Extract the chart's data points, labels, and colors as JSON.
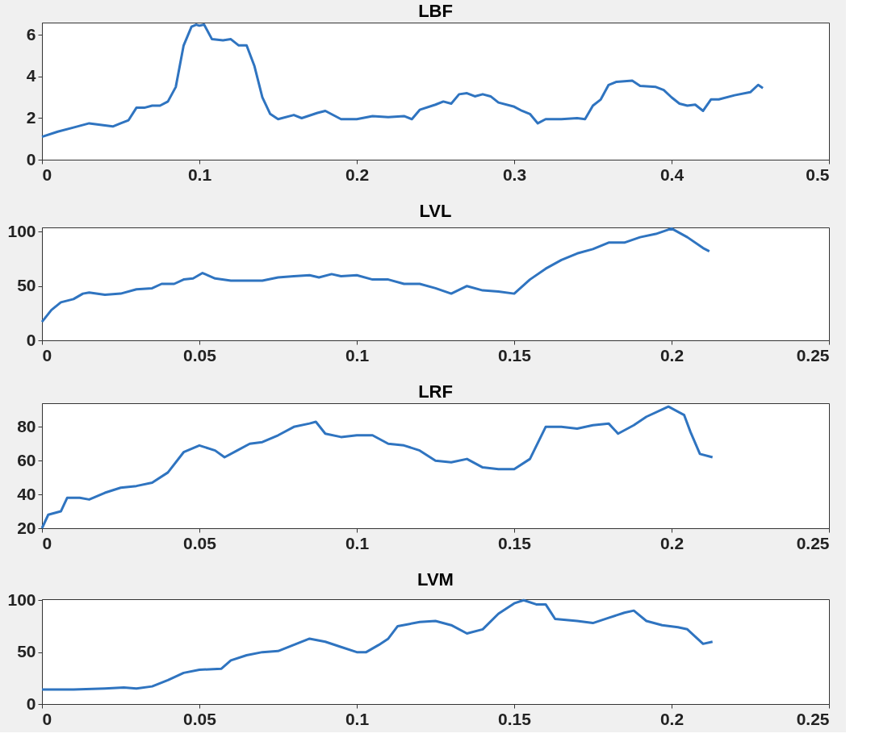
{
  "chart_data": [
    {
      "type": "line",
      "title": "LBF",
      "color": "#2f74c0",
      "xlim": [
        0,
        0.5
      ],
      "xticks": [
        0,
        0.1,
        0.2,
        0.3,
        0.4,
        0.5
      ],
      "ylim": [
        0,
        6.6
      ],
      "yticks": [
        0,
        2,
        4,
        6
      ],
      "grid": false,
      "x": [
        0,
        0.01,
        0.02,
        0.03,
        0.035,
        0.045,
        0.05,
        0.055,
        0.06,
        0.065,
        0.07,
        0.075,
        0.08,
        0.085,
        0.09,
        0.095,
        0.098,
        0.1,
        0.103,
        0.108,
        0.115,
        0.12,
        0.125,
        0.13,
        0.135,
        0.14,
        0.145,
        0.15,
        0.16,
        0.165,
        0.175,
        0.18,
        0.19,
        0.2,
        0.21,
        0.22,
        0.23,
        0.235,
        0.24,
        0.25,
        0.255,
        0.26,
        0.265,
        0.27,
        0.275,
        0.28,
        0.285,
        0.29,
        0.3,
        0.305,
        0.31,
        0.315,
        0.32,
        0.33,
        0.34,
        0.345,
        0.35,
        0.355,
        0.36,
        0.365,
        0.375,
        0.38,
        0.39,
        0.395,
        0.4,
        0.405,
        0.41,
        0.415,
        0.42,
        0.425,
        0.43,
        0.44,
        0.45,
        0.455,
        0.458
      ],
      "values": [
        1.1,
        1.35,
        1.55,
        1.75,
        1.7,
        1.6,
        1.75,
        1.9,
        2.5,
        2.5,
        2.6,
        2.6,
        2.8,
        3.5,
        5.5,
        6.4,
        6.5,
        6.45,
        6.5,
        5.8,
        5.75,
        5.8,
        5.5,
        5.5,
        4.5,
        3.0,
        2.2,
        1.95,
        2.15,
        2.0,
        2.25,
        2.35,
        1.95,
        1.95,
        2.1,
        2.05,
        2.1,
        1.95,
        2.4,
        2.65,
        2.8,
        2.7,
        3.15,
        3.2,
        3.05,
        3.15,
        3.05,
        2.75,
        2.55,
        2.35,
        2.2,
        1.75,
        1.95,
        1.95,
        2.0,
        1.95,
        2.6,
        2.9,
        3.6,
        3.75,
        3.8,
        3.55,
        3.5,
        3.35,
        3.0,
        2.7,
        2.6,
        2.65,
        2.35,
        2.9,
        2.9,
        3.1,
        3.25,
        3.6,
        3.45
      ]
    },
    {
      "type": "line",
      "title": "LVL",
      "color": "#2f74c0",
      "xlim": [
        0,
        0.25
      ],
      "xticks": [
        0,
        0.05,
        0.1,
        0.15,
        0.2,
        0.25
      ],
      "ylim": [
        0,
        104
      ],
      "yticks": [
        0,
        50,
        100
      ],
      "grid": false,
      "x": [
        0,
        0.003,
        0.006,
        0.01,
        0.013,
        0.015,
        0.02,
        0.025,
        0.03,
        0.035,
        0.038,
        0.042,
        0.045,
        0.048,
        0.051,
        0.055,
        0.06,
        0.07,
        0.075,
        0.08,
        0.085,
        0.088,
        0.092,
        0.095,
        0.1,
        0.105,
        0.11,
        0.115,
        0.12,
        0.125,
        0.13,
        0.135,
        0.14,
        0.145,
        0.15,
        0.155,
        0.16,
        0.165,
        0.17,
        0.175,
        0.18,
        0.185,
        0.19,
        0.195,
        0.2,
        0.205,
        0.21,
        0.212
      ],
      "values": [
        17,
        28,
        35,
        38,
        43,
        44,
        42,
        43,
        47,
        48,
        52,
        52,
        56,
        57,
        62,
        57,
        55,
        55,
        58,
        59,
        60,
        58,
        61,
        59,
        60,
        56,
        56,
        52,
        52,
        48,
        43,
        50,
        46,
        45,
        43,
        56,
        66,
        74,
        80,
        84,
        90,
        90,
        95,
        98,
        103,
        95,
        85,
        82
      ]
    },
    {
      "type": "line",
      "title": "LRF",
      "color": "#2f74c0",
      "xlim": [
        0,
        0.25
      ],
      "xticks": [
        0,
        0.05,
        0.1,
        0.15,
        0.2,
        0.25
      ],
      "ylim": [
        20,
        94
      ],
      "yticks": [
        20,
        40,
        60,
        80
      ],
      "grid": false,
      "x": [
        0,
        0.002,
        0.006,
        0.008,
        0.012,
        0.015,
        0.02,
        0.025,
        0.03,
        0.035,
        0.04,
        0.045,
        0.05,
        0.055,
        0.058,
        0.062,
        0.066,
        0.07,
        0.075,
        0.08,
        0.085,
        0.087,
        0.09,
        0.095,
        0.1,
        0.105,
        0.11,
        0.115,
        0.12,
        0.125,
        0.13,
        0.135,
        0.14,
        0.145,
        0.15,
        0.155,
        0.16,
        0.165,
        0.17,
        0.175,
        0.18,
        0.183,
        0.188,
        0.192,
        0.199,
        0.204,
        0.206,
        0.209,
        0.213
      ],
      "values": [
        20,
        28,
        30,
        38,
        38,
        37,
        41,
        44,
        45,
        47,
        53,
        65,
        69,
        66,
        62,
        66,
        70,
        71,
        75,
        80,
        82,
        83,
        76,
        74,
        75,
        75,
        70,
        69,
        66,
        60,
        59,
        61,
        56,
        55,
        55,
        61,
        80,
        80,
        79,
        81,
        82,
        76,
        81,
        86,
        92,
        87,
        77,
        64,
        62
      ]
    },
    {
      "type": "line",
      "title": "LVM",
      "color": "#2f74c0",
      "xlim": [
        0,
        0.25
      ],
      "xticks": [
        0,
        0.05,
        0.1,
        0.15,
        0.2,
        0.25
      ],
      "ylim": [
        0,
        101
      ],
      "yticks": [
        0,
        50,
        100
      ],
      "grid": false,
      "x": [
        0,
        0.01,
        0.02,
        0.026,
        0.03,
        0.035,
        0.04,
        0.045,
        0.05,
        0.057,
        0.06,
        0.065,
        0.07,
        0.075,
        0.08,
        0.085,
        0.09,
        0.095,
        0.1,
        0.103,
        0.107,
        0.11,
        0.113,
        0.12,
        0.125,
        0.13,
        0.135,
        0.14,
        0.145,
        0.15,
        0.153,
        0.157,
        0.16,
        0.163,
        0.17,
        0.175,
        0.18,
        0.185,
        0.188,
        0.192,
        0.197,
        0.202,
        0.205,
        0.21,
        0.213
      ],
      "values": [
        14,
        14,
        15,
        16,
        15,
        17,
        23,
        30,
        33,
        34,
        42,
        47,
        50,
        51,
        57,
        63,
        60,
        55,
        50,
        50,
        57,
        63,
        75,
        79,
        80,
        76,
        68,
        72,
        87,
        97,
        100,
        96,
        96,
        82,
        80,
        78,
        83,
        88,
        90,
        80,
        76,
        74,
        72,
        58,
        60
      ]
    }
  ]
}
